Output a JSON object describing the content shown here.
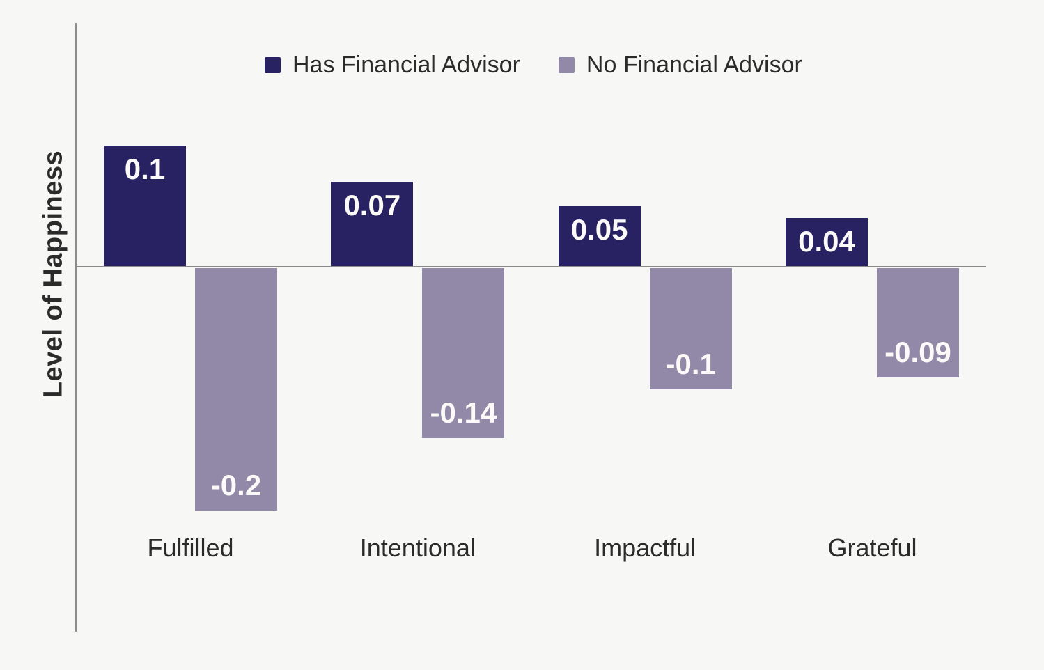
{
  "chart_data": {
    "type": "bar",
    "categories": [
      "Fulfilled",
      "Intentional",
      "Impactful",
      "Grateful"
    ],
    "series": [
      {
        "name": "Has Financial Advisor",
        "color": "#292262",
        "values": [
          0.1,
          0.07,
          0.05,
          0.04
        ]
      },
      {
        "name": "No Financial Advisor",
        "color": "#9189a7",
        "values": [
          -0.2,
          -0.14,
          -0.1,
          -0.09
        ]
      }
    ],
    "title": "",
    "xlabel": "",
    "ylabel": "Level of Happiness",
    "ylim": [
      -0.25,
      0.13
    ],
    "grid": false,
    "legend_position": "top",
    "value_labels_shown": true,
    "value_label_texts": [
      "0.1",
      "0.07",
      "0.05",
      "0.04",
      "-0.2",
      "-0.14",
      "-0.1",
      "-0.09"
    ],
    "colors": {
      "background": "#f7f7f5",
      "axis": "#8a8a8a",
      "text": "#2b2b2b",
      "value_label": "#fbfaf8"
    }
  }
}
